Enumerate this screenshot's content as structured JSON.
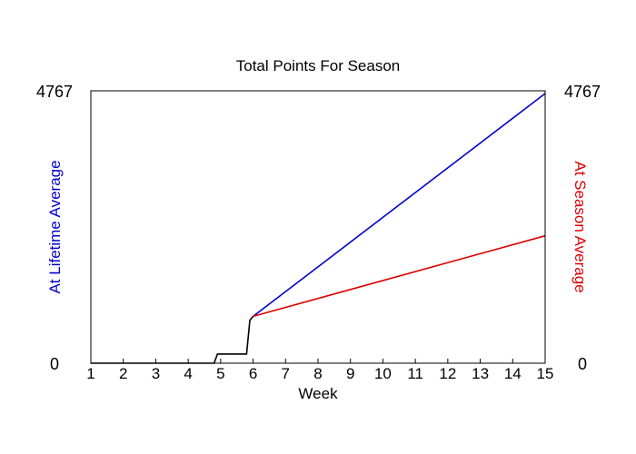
{
  "chart_data": {
    "type": "line",
    "title": "Total Points For Season",
    "xlabel": "Week",
    "ylabel_left": "At Lifetime Average",
    "ylabel_right": "At Season Average",
    "xlim": [
      1,
      15
    ],
    "ylim": [
      0,
      4767
    ],
    "x_ticks": [
      1,
      2,
      3,
      4,
      5,
      6,
      7,
      8,
      9,
      10,
      11,
      12,
      13,
      14,
      15
    ],
    "y_tick_labels": {
      "left_top": "4767",
      "left_bottom": "0",
      "right_top": "4767",
      "right_bottom": "0"
    },
    "grid": false,
    "colors": {
      "actual": "#000000",
      "lifetime": "#0000cc",
      "season": "#dd0000",
      "left_label": "#0000cc",
      "right_label": "#dd0000"
    },
    "series": [
      {
        "key": "actual",
        "x": [
          1,
          4.8,
          4.9,
          5.8,
          5.9,
          6
        ],
        "y": [
          0,
          0,
          160,
          160,
          750,
          820
        ]
      },
      {
        "key": "lifetime",
        "x": [
          6,
          15
        ],
        "y": [
          820,
          4720
        ]
      },
      {
        "key": "season",
        "x": [
          6,
          15
        ],
        "y": [
          820,
          2230
        ]
      }
    ]
  }
}
